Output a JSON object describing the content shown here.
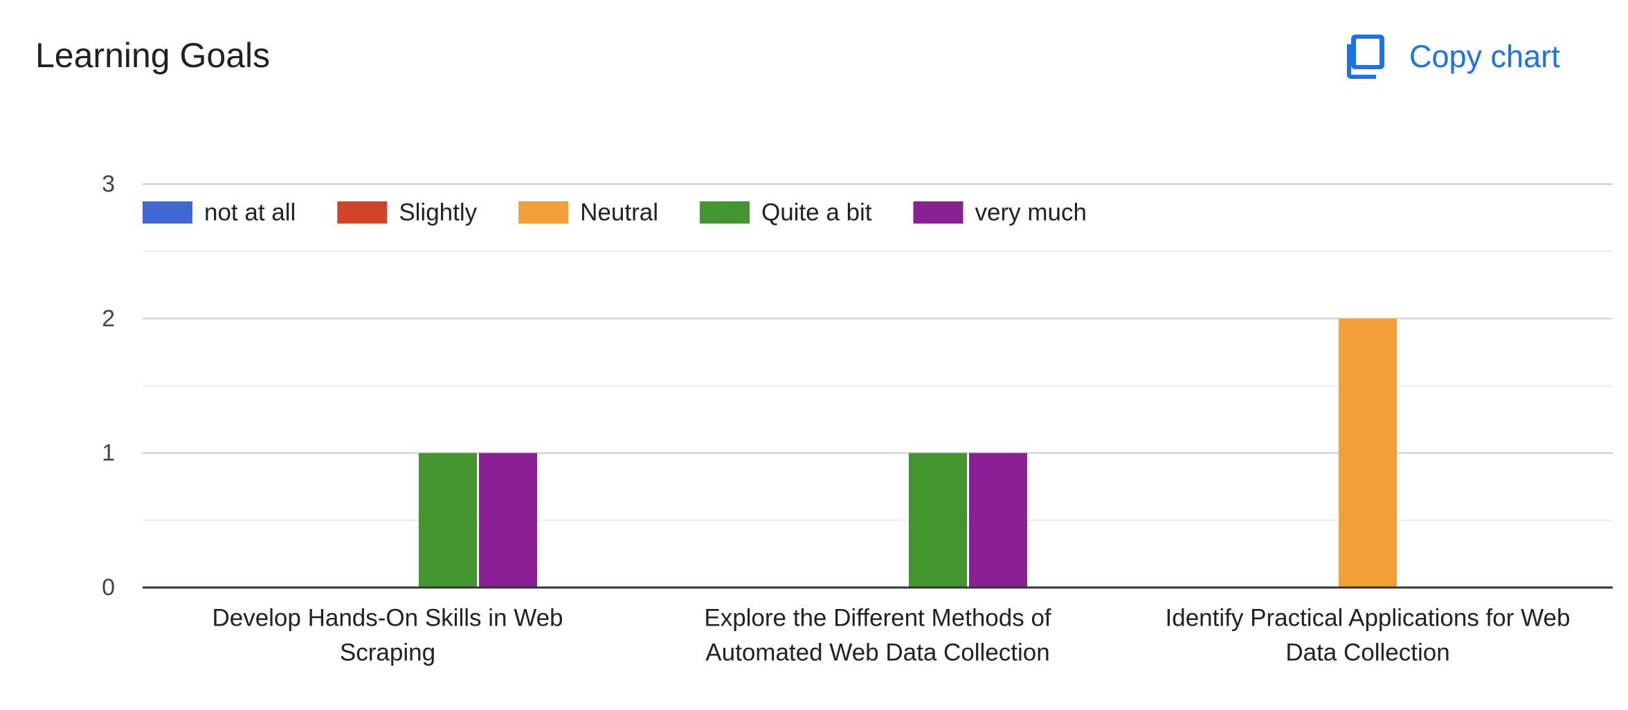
{
  "title": "Learning Goals",
  "copy_button": {
    "label": "Copy chart",
    "icon": "copy-icon"
  },
  "chart_data": {
    "type": "bar",
    "categories": [
      [
        "Develop Hands-On Skills in Web",
        "Scraping"
      ],
      [
        "Explore the Different Methods of",
        "Automated Web Data Collection"
      ],
      [
        "Identify Practical Applications for Web",
        "Data Collection"
      ]
    ],
    "series": [
      {
        "name": "not at all",
        "color": "#3f68d2",
        "values": [
          0,
          0,
          0
        ]
      },
      {
        "name": "Slightly",
        "color": "#d14327",
        "values": [
          0,
          0,
          0
        ]
      },
      {
        "name": "Neutral",
        "color": "#f29f38",
        "values": [
          0,
          0,
          2
        ]
      },
      {
        "name": "Quite a bit",
        "color": "#43952f",
        "values": [
          1,
          1,
          0
        ]
      },
      {
        "name": "very much",
        "color": "#8b1f95",
        "values": [
          1,
          1,
          0
        ]
      }
    ],
    "ylim": [
      0,
      3
    ],
    "yticks": [
      "0",
      "1",
      "2",
      "3"
    ],
    "legend_position": "top-left",
    "grid": true,
    "xlabel": "",
    "ylabel": ""
  }
}
